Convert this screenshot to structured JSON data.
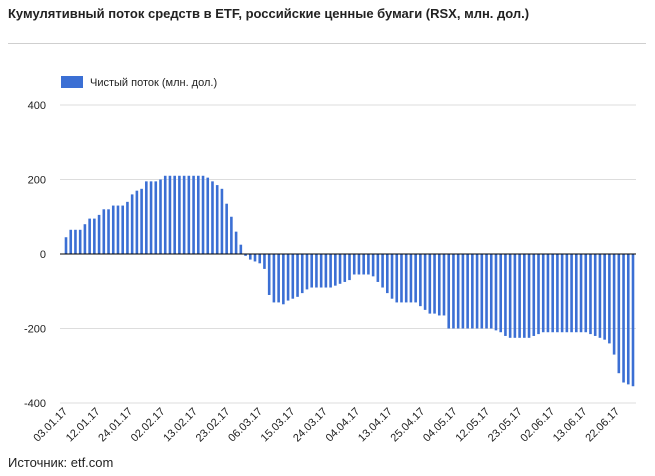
{
  "title": "Кумулятивный поток средств в ETF, российские ценные бумаги (RSX, млн. дол.)",
  "source": "Источник: etf.com",
  "colors": {
    "bar": "#3b6fd4",
    "grid": "#dddddd",
    "axis": "#000000"
  },
  "chart_data": {
    "type": "bar",
    "legend": {
      "label": "Чистый поток (млн. дол.)",
      "position": "top-left"
    },
    "ylim": [
      -400,
      400
    ],
    "yticks": [
      400,
      200,
      0,
      -200,
      -400
    ],
    "grid": true,
    "xtick_labels": [
      "03.01.17",
      "12.01.17",
      "24.01.17",
      "02.02.17",
      "13.02.17",
      "23.02.17",
      "06.03.17",
      "15.03.17",
      "24.03.17",
      "04.04.17",
      "13.04.17",
      "25.04.17",
      "04.05.17",
      "12.05.17",
      "23.05.17",
      "02.06.17",
      "13.06.17",
      "22.06.17"
    ],
    "series": [
      {
        "name": "Чистый поток (млн. дол.)",
        "values": [
          45,
          65,
          65,
          65,
          80,
          95,
          95,
          105,
          120,
          120,
          130,
          130,
          130,
          140,
          160,
          170,
          175,
          195,
          195,
          195,
          200,
          210,
          210,
          210,
          210,
          210,
          210,
          210,
          210,
          210,
          205,
          195,
          185,
          175,
          135,
          100,
          60,
          25,
          -5,
          -15,
          -20,
          -25,
          -40,
          -110,
          -130,
          -130,
          -135,
          -125,
          -120,
          -115,
          -105,
          -95,
          -90,
          -90,
          -90,
          -90,
          -90,
          -85,
          -80,
          -75,
          -70,
          -55,
          -55,
          -55,
          -55,
          -60,
          -75,
          -90,
          -105,
          -120,
          -130,
          -130,
          -130,
          -130,
          -130,
          -140,
          -150,
          -160,
          -160,
          -165,
          -165,
          -200,
          -200,
          -200,
          -200,
          -200,
          -200,
          -200,
          -200,
          -200,
          -200,
          -205,
          -210,
          -220,
          -225,
          -225,
          -225,
          -225,
          -225,
          -220,
          -215,
          -210,
          -210,
          -210,
          -210,
          -210,
          -210,
          -210,
          -210,
          -210,
          -210,
          -215,
          -220,
          -225,
          -230,
          -240,
          -270,
          -320,
          -345,
          -350,
          -355
        ]
      }
    ]
  }
}
